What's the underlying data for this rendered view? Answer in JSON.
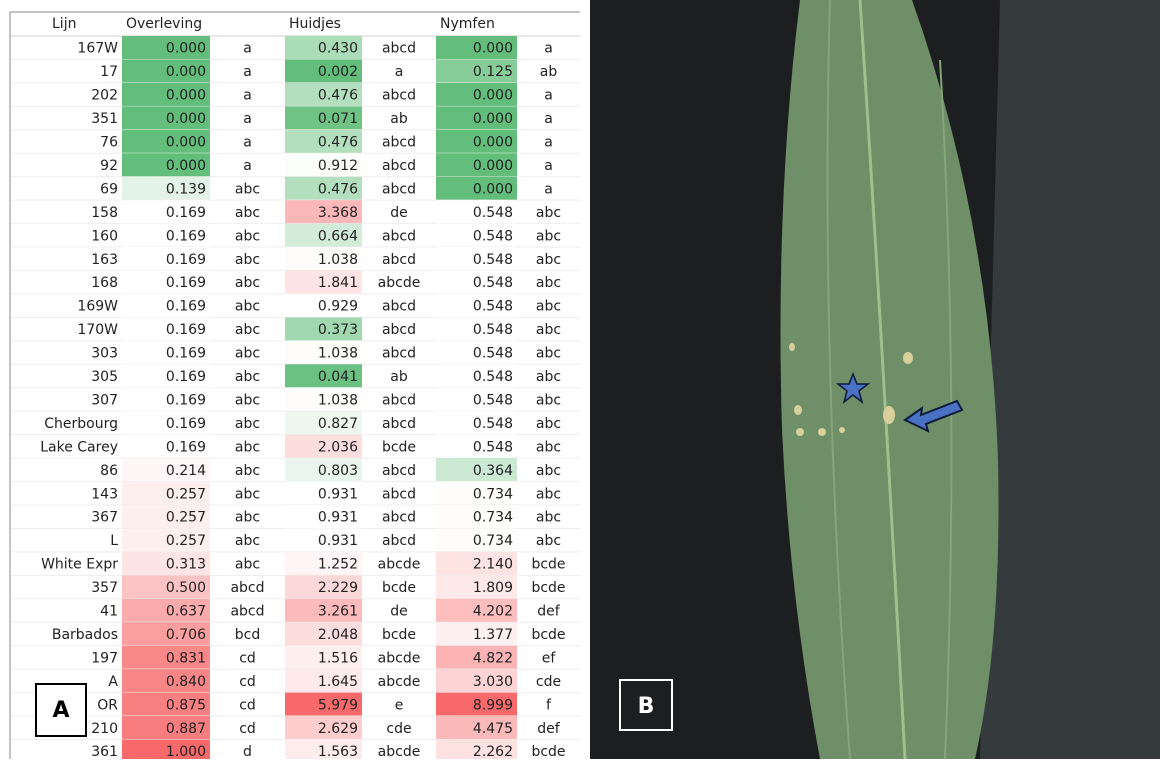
{
  "panel_a": {
    "label": "A",
    "table": {
      "header": [
        "Lijn",
        "Overleving",
        "Huidjes",
        "Nymfen"
      ],
      "rows": [
        [
          "167W",
          "0.000",
          "a",
          "0.430",
          "abcd",
          "0.000",
          "a"
        ],
        [
          "17",
          "0.000",
          "a",
          "0.002",
          "a",
          "0.125",
          "ab"
        ],
        [
          "202",
          "0.000",
          "a",
          "0.476",
          "abcd",
          "0.000",
          "a"
        ],
        [
          "351",
          "0.000",
          "a",
          "0.071",
          "ab",
          "0.000",
          "a"
        ],
        [
          "76",
          "0.000",
          "a",
          "0.476",
          "abcd",
          "0.000",
          "a"
        ],
        [
          "92",
          "0.000",
          "a",
          "0.912",
          "abcd",
          "0.000",
          "a"
        ],
        [
          "69",
          "0.139",
          "abc",
          "0.476",
          "abcd",
          "0.000",
          "a"
        ],
        [
          "158",
          "0.169",
          "abc",
          "3.368",
          "de",
          "0.548",
          "abc"
        ],
        [
          "160",
          "0.169",
          "abc",
          "0.664",
          "abcd",
          "0.548",
          "abc"
        ],
        [
          "163",
          "0.169",
          "abc",
          "1.038",
          "abcd",
          "0.548",
          "abc"
        ],
        [
          "168",
          "0.169",
          "abc",
          "1.841",
          "abcde",
          "0.548",
          "abc"
        ],
        [
          "169W",
          "0.169",
          "abc",
          "0.929",
          "abcd",
          "0.548",
          "abc"
        ],
        [
          "170W",
          "0.169",
          "abc",
          "0.373",
          "abcd",
          "0.548",
          "abc"
        ],
        [
          "303",
          "0.169",
          "abc",
          "1.038",
          "abcd",
          "0.548",
          "abc"
        ],
        [
          "305",
          "0.169",
          "abc",
          "0.041",
          "ab",
          "0.548",
          "abc"
        ],
        [
          "307",
          "0.169",
          "abc",
          "1.038",
          "abcd",
          "0.548",
          "abc"
        ],
        [
          "Cherbourg",
          "0.169",
          "abc",
          "0.827",
          "abcd",
          "0.548",
          "abc"
        ],
        [
          "Lake Carey",
          "0.169",
          "abc",
          "2.036",
          "bcde",
          "0.548",
          "abc"
        ],
        [
          "86",
          "0.214",
          "abc",
          "0.803",
          "abcd",
          "0.364",
          "abc"
        ],
        [
          "143",
          "0.257",
          "abc",
          "0.931",
          "abcd",
          "0.734",
          "abc"
        ],
        [
          "367",
          "0.257",
          "abc",
          "0.931",
          "abcd",
          "0.734",
          "abc"
        ],
        [
          "L",
          "0.257",
          "abc",
          "0.931",
          "abcd",
          "0.734",
          "abc"
        ],
        [
          "White Expr",
          "0.313",
          "abc",
          "1.252",
          "abcde",
          "2.140",
          "bcde"
        ],
        [
          "357",
          "0.500",
          "abcd",
          "2.229",
          "bcde",
          "1.809",
          "bcde"
        ],
        [
          "41",
          "0.637",
          "abcd",
          "3.261",
          "de",
          "4.202",
          "def"
        ],
        [
          "Barbados",
          "0.706",
          "bcd",
          "2.048",
          "bcde",
          "1.377",
          "bcde"
        ],
        [
          "197",
          "0.831",
          "cd",
          "1.516",
          "abcde",
          "4.822",
          "ef"
        ],
        [
          "A",
          "0.840",
          "cd",
          "1.645",
          "abcde",
          "3.030",
          "cde"
        ],
        [
          "OR",
          "0.875",
          "cd",
          "5.979",
          "e",
          "8.999",
          "f"
        ],
        [
          "210",
          "0.887",
          "cd",
          "2.629",
          "cde",
          "4.475",
          "def"
        ],
        [
          "361",
          "1.000",
          "d",
          "1.563",
          "abcde",
          "2.262",
          "bcde"
        ]
      ]
    }
  },
  "panel_b": {
    "label": "B"
  }
}
